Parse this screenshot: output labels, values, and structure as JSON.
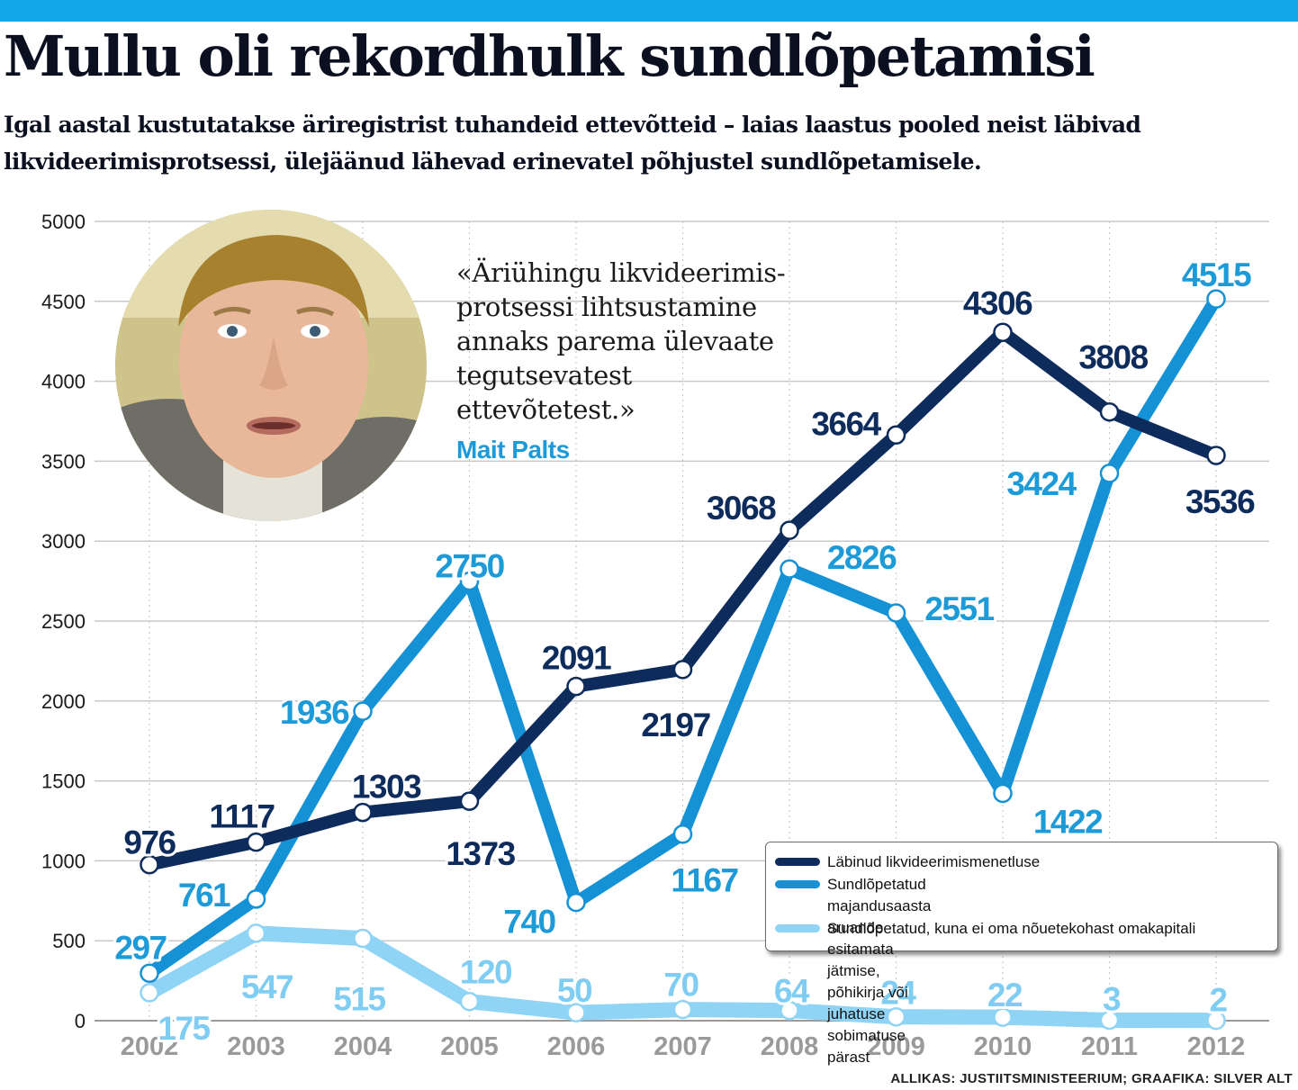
{
  "header": {
    "title": "Mullu oli rekordhulk sundlõpetamisi",
    "subtitle": "Igal aastal kustutatakse äriregistrist tuhandeid ettevõtteid – laias laastus pooled neist läbivad likvideerimisprotsessi, ülejäänud lähevad erinevatel põhjustel sundlõpetamisele."
  },
  "quote": {
    "text": "«Äriühingu likvideerimis-\nprotsessi lihtsustamine\nannaks parema ülevaate\ntegutsevatest\nettevõtetest.»",
    "author": "Mait Palts"
  },
  "source": "ALLIKAS: JUSTIITSMINISTEERIUM; GRAAFIKA: SILVER ALT",
  "legend": {
    "items": [
      {
        "label": "Läbinud likvideerimismenetluse",
        "color": "#0d2c5c"
      },
      {
        "label": "Sundlõpetatud majandusaasta aruande esitamata jätmise,\npõhikirja või juhatuse sobimatuse pärast",
        "color": "#1591d6"
      },
      {
        "label": "Sundlõpetatud, kuna ei oma nõuetekohast omakapitali",
        "color": "#8fd3f5"
      }
    ]
  },
  "chart_data": {
    "type": "line",
    "title": "Mullu oli rekordhulk sundlõpetamisi",
    "xlabel": "",
    "ylabel": "",
    "x": [
      "2002",
      "2003",
      "2004",
      "2005",
      "2006",
      "2007",
      "2008",
      "2009",
      "2010",
      "2011",
      "2012"
    ],
    "ylim": [
      0,
      5000
    ],
    "yticks": [
      "0",
      "500",
      "1000",
      "1500",
      "2000",
      "2500",
      "3000",
      "3500",
      "4000",
      "4500",
      "5000"
    ],
    "grid": true,
    "legend_position": "bottom-right",
    "series": [
      {
        "name": "Läbinud likvideerimismenetluse",
        "color": "#0d2c5c",
        "label_color": "#0d2c5c",
        "values": [
          976,
          1117,
          1303,
          1373,
          2091,
          2197,
          3068,
          3664,
          4306,
          3808,
          3536
        ]
      },
      {
        "name": "Sundlõpetatud majandusaasta aruande esitamata jätmise, põhikirja või juhatuse sobimatuse pärast",
        "color": "#1591d6",
        "label_color": "#1d9ad8",
        "values": [
          297,
          761,
          1936,
          2750,
          740,
          1167,
          2826,
          2551,
          1422,
          3424,
          4515
        ]
      },
      {
        "name": "Sundlõpetatud, kuna ei oma nõuetekohast omakapitali",
        "color": "#8fd3f5",
        "label_color": "#7fcdf2",
        "values": [
          175,
          547,
          515,
          120,
          50,
          70,
          64,
          24,
          22,
          3,
          2
        ]
      }
    ]
  }
}
